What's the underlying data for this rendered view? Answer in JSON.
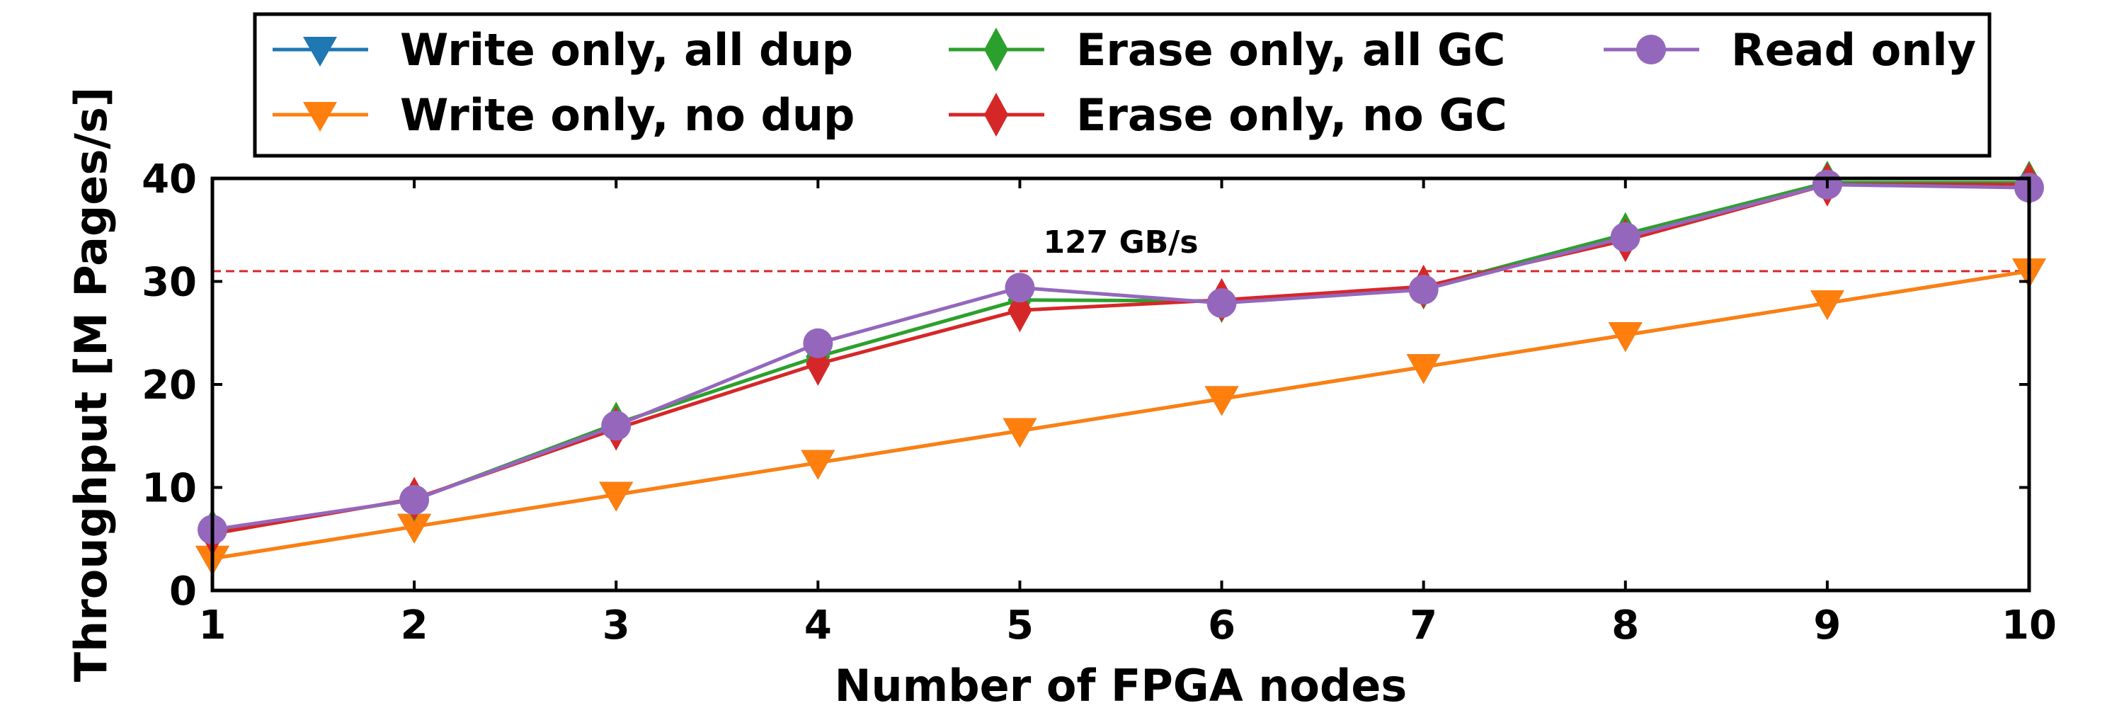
{
  "chart_data": {
    "type": "line",
    "title": "",
    "xlabel": "Number of FPGA nodes",
    "ylabel": "Throughput [M Pages/s]",
    "x": [
      1,
      2,
      3,
      4,
      5,
      6,
      7,
      8,
      9,
      10
    ],
    "xlim": [
      1,
      10
    ],
    "ylim": [
      0,
      40
    ],
    "xticks": [
      "1",
      "2",
      "3",
      "4",
      "5",
      "6",
      "7",
      "8",
      "9",
      "10"
    ],
    "yticks": [
      "0",
      "10",
      "20",
      "30",
      "40"
    ],
    "grid": false,
    "legend_position": "top",
    "series": [
      {
        "name": "Write only, all dup",
        "color": "#1f77b4",
        "marker": "triangle-down",
        "values": [
          3.1,
          6.2,
          9.3,
          12.4,
          15.5,
          18.6,
          21.7,
          24.8,
          27.9,
          31.0
        ]
      },
      {
        "name": "Write only, no dup",
        "color": "#ff7f0e",
        "marker": "triangle-down",
        "values": [
          3.1,
          6.2,
          9.3,
          12.4,
          15.5,
          18.6,
          21.7,
          24.8,
          27.9,
          31.0
        ]
      },
      {
        "name": "Erase only, all GC",
        "color": "#2ca02c",
        "marker": "diamond",
        "values": [
          5.8,
          8.8,
          16.2,
          22.7,
          28.2,
          28.1,
          29.4,
          34.6,
          39.6,
          39.6
        ]
      },
      {
        "name": "Erase only, no GC",
        "color": "#d62728",
        "marker": "diamond",
        "values": [
          5.5,
          8.9,
          15.7,
          22.0,
          27.2,
          28.2,
          29.5,
          34.0,
          39.4,
          39.4
        ]
      },
      {
        "name": "Read only",
        "color": "#9467bd",
        "marker": "circle",
        "values": [
          5.9,
          8.8,
          16.0,
          24.0,
          29.4,
          27.9,
          29.2,
          34.3,
          39.4,
          39.1
        ]
      }
    ],
    "reference_line": {
      "y": 31.0,
      "color": "#d62728",
      "style": "dashed",
      "label": "127 GB/s",
      "label_x": 5.5
    }
  }
}
